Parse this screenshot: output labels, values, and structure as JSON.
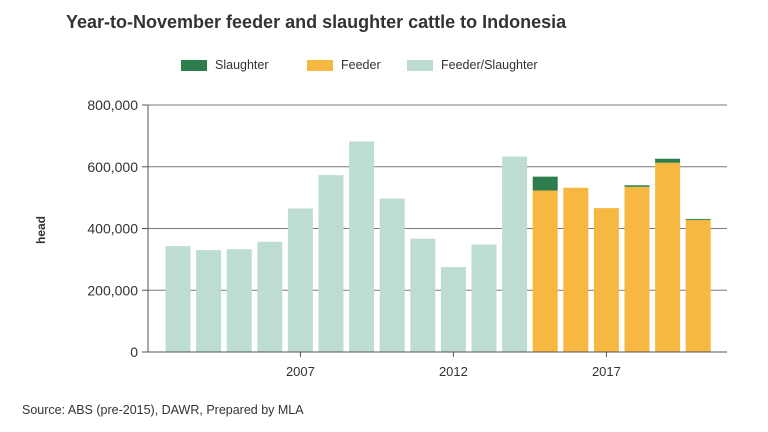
{
  "title": "Year-to-November feeder and slaughter cattle to Indonesia",
  "source": "Source: ABS (pre-2015), DAWR, Prepared by MLA",
  "chart_data": {
    "type": "bar",
    "stacked": true,
    "title": "Year-to-November feeder and slaughter cattle to Indonesia",
    "ylabel": "head",
    "xlabel": "",
    "ylim": [
      0,
      800000
    ],
    "y_ticks": [
      0,
      200000,
      400000,
      600000,
      800000
    ],
    "y_tick_labels": [
      "0",
      "200,000",
      "400,000",
      "600,000",
      "800,000"
    ],
    "categories": [
      2003,
      2004,
      2005,
      2006,
      2007,
      2008,
      2009,
      2010,
      2011,
      2012,
      2013,
      2014,
      2015,
      2016,
      2017,
      2018,
      2019,
      2020
    ],
    "x_tick_labels": [
      {
        "category": 2007,
        "label": "2007"
      },
      {
        "category": 2012,
        "label": "2012"
      },
      {
        "category": 2017,
        "label": "2017"
      }
    ],
    "legend_position": "top",
    "grid": "horizontal",
    "series": [
      {
        "name": "Slaughter",
        "color": "#2e7d4f",
        "values": [
          0,
          0,
          0,
          0,
          0,
          0,
          0,
          0,
          0,
          0,
          0,
          0,
          45000,
          0,
          0,
          5000,
          13000,
          3000
        ]
      },
      {
        "name": "Feeder",
        "color": "#f7b841",
        "values": [
          0,
          0,
          0,
          0,
          0,
          0,
          0,
          0,
          0,
          0,
          0,
          0,
          523000,
          532000,
          466000,
          535000,
          613000,
          428000
        ]
      },
      {
        "name": "Feeder/Slaughter",
        "color": "#bdddd0",
        "values": [
          343000,
          330000,
          333000,
          357000,
          465000,
          573000,
          682000,
          497000,
          367000,
          275000,
          348000,
          633000,
          0,
          0,
          0,
          0,
          0,
          0
        ]
      }
    ]
  }
}
